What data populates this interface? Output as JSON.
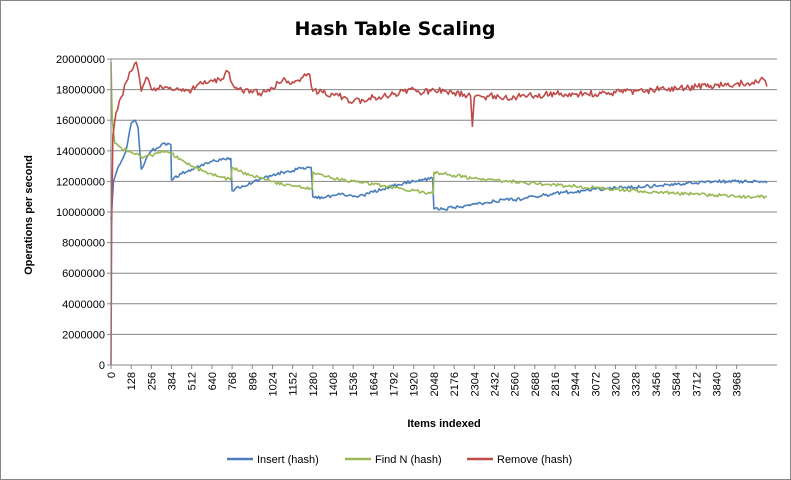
{
  "chart_data": {
    "type": "line",
    "title": "Hash Table Scaling",
    "xlabel": "Items indexed",
    "ylabel": "Operations per second",
    "xlim": [
      0,
      4224
    ],
    "ylim": [
      0,
      20000000
    ],
    "y_ticks": [
      "0",
      "2000000",
      "4000000",
      "6000000",
      "8000000",
      "10000000",
      "12000000",
      "14000000",
      "16000000",
      "18000000",
      "20000000"
    ],
    "x_ticks": [
      "0",
      "128",
      "256",
      "384",
      "512",
      "640",
      "768",
      "896",
      "1024",
      "1152",
      "1280",
      "1408",
      "1536",
      "1664",
      "1792",
      "1920",
      "2048",
      "2176",
      "2304",
      "2432",
      "2560",
      "2688",
      "2816",
      "2944",
      "3072",
      "3200",
      "3328",
      "3456",
      "3584",
      "3712",
      "3840",
      "3968"
    ],
    "grid": "horizontal",
    "legend_position": "bottom",
    "series": [
      {
        "name": "Insert (hash)",
        "color": "#4a7ebb",
        "points": [
          [
            0,
            9500000
          ],
          [
            16,
            12000000
          ],
          [
            48,
            13000000
          ],
          [
            96,
            14000000
          ],
          [
            128,
            15800000
          ],
          [
            152,
            16000000
          ],
          [
            172,
            15500000
          ],
          [
            192,
            12800000
          ],
          [
            224,
            13500000
          ],
          [
            256,
            14000000
          ],
          [
            300,
            14200000
          ],
          [
            340,
            14500000
          ],
          [
            380,
            14400000
          ],
          [
            384,
            12100000
          ],
          [
            448,
            12500000
          ],
          [
            512,
            12800000
          ],
          [
            576,
            13100000
          ],
          [
            640,
            13300000
          ],
          [
            700,
            13400000
          ],
          [
            760,
            13500000
          ],
          [
            768,
            11400000
          ],
          [
            832,
            11700000
          ],
          [
            896,
            11900000
          ],
          [
            960,
            12200000
          ],
          [
            1024,
            12400000
          ],
          [
            1088,
            12600000
          ],
          [
            1152,
            12700000
          ],
          [
            1216,
            12900000
          ],
          [
            1270,
            12900000
          ],
          [
            1280,
            11000000
          ],
          [
            1344,
            10900000
          ],
          [
            1408,
            11100000
          ],
          [
            1472,
            11200000
          ],
          [
            1536,
            11000000
          ],
          [
            1600,
            11100000
          ],
          [
            1664,
            11300000
          ],
          [
            1728,
            11500000
          ],
          [
            1792,
            11700000
          ],
          [
            1856,
            11900000
          ],
          [
            1920,
            12000000
          ],
          [
            1984,
            12100000
          ],
          [
            2040,
            12200000
          ],
          [
            2048,
            10200000
          ],
          [
            2112,
            10200000
          ],
          [
            2176,
            10300000
          ],
          [
            2240,
            10400000
          ],
          [
            2304,
            10500000
          ],
          [
            2368,
            10600000
          ],
          [
            2432,
            10700000
          ],
          [
            2496,
            10800000
          ],
          [
            2560,
            10800000
          ],
          [
            2624,
            10900000
          ],
          [
            2688,
            11000000
          ],
          [
            2752,
            11100000
          ],
          [
            2816,
            11200000
          ],
          [
            2880,
            11300000
          ],
          [
            2944,
            11300000
          ],
          [
            3008,
            11400000
          ],
          [
            3072,
            11500000
          ],
          [
            3136,
            11500000
          ],
          [
            3200,
            11600000
          ],
          [
            3264,
            11600000
          ],
          [
            3328,
            11600000
          ],
          [
            3392,
            11700000
          ],
          [
            3456,
            11700000
          ],
          [
            3520,
            11800000
          ],
          [
            3584,
            11800000
          ],
          [
            3648,
            11900000
          ],
          [
            3712,
            11900000
          ],
          [
            3776,
            12000000
          ],
          [
            3840,
            12000000
          ],
          [
            3904,
            12000000
          ],
          [
            3968,
            12000000
          ],
          [
            4032,
            12000000
          ],
          [
            4096,
            12000000
          ],
          [
            4160,
            11900000
          ]
        ]
      },
      {
        "name": "Find N (hash)",
        "color": "#98b954",
        "points": [
          [
            0,
            19800000
          ],
          [
            8,
            16000000
          ],
          [
            24,
            14500000
          ],
          [
            64,
            14200000
          ],
          [
            128,
            13900000
          ],
          [
            192,
            13600000
          ],
          [
            256,
            13700000
          ],
          [
            320,
            14000000
          ],
          [
            384,
            13800000
          ],
          [
            448,
            13400000
          ],
          [
            512,
            13000000
          ],
          [
            576,
            12700000
          ],
          [
            640,
            12500000
          ],
          [
            700,
            12300000
          ],
          [
            760,
            12100000
          ],
          [
            768,
            12900000
          ],
          [
            832,
            12600000
          ],
          [
            896,
            12400000
          ],
          [
            960,
            12200000
          ],
          [
            1024,
            12000000
          ],
          [
            1088,
            11800000
          ],
          [
            1152,
            11700000
          ],
          [
            1216,
            11600000
          ],
          [
            1276,
            11500000
          ],
          [
            1280,
            12600000
          ],
          [
            1344,
            12400000
          ],
          [
            1408,
            12200000
          ],
          [
            1472,
            12100000
          ],
          [
            1536,
            12000000
          ],
          [
            1600,
            11900000
          ],
          [
            1664,
            11800000
          ],
          [
            1728,
            11700000
          ],
          [
            1792,
            11600000
          ],
          [
            1856,
            11500000
          ],
          [
            1920,
            11400000
          ],
          [
            1984,
            11300000
          ],
          [
            2044,
            11200000
          ],
          [
            2048,
            12600000
          ],
          [
            2112,
            12500000
          ],
          [
            2176,
            12400000
          ],
          [
            2240,
            12300000
          ],
          [
            2304,
            12200000
          ],
          [
            2368,
            12100000
          ],
          [
            2432,
            12100000
          ],
          [
            2496,
            12000000
          ],
          [
            2560,
            12000000
          ],
          [
            2624,
            11900000
          ],
          [
            2688,
            11900000
          ],
          [
            2752,
            11800000
          ],
          [
            2816,
            11800000
          ],
          [
            2880,
            11700000
          ],
          [
            2944,
            11700000
          ],
          [
            3008,
            11600000
          ],
          [
            3072,
            11600000
          ],
          [
            3136,
            11500000
          ],
          [
            3200,
            11500000
          ],
          [
            3264,
            11400000
          ],
          [
            3328,
            11400000
          ],
          [
            3392,
            11300000
          ],
          [
            3456,
            11300000
          ],
          [
            3520,
            11300000
          ],
          [
            3584,
            11200000
          ],
          [
            3648,
            11200000
          ],
          [
            3712,
            11200000
          ],
          [
            3776,
            11100000
          ],
          [
            3840,
            11100000
          ],
          [
            3904,
            11100000
          ],
          [
            3968,
            11000000
          ],
          [
            4032,
            11000000
          ],
          [
            4096,
            11000000
          ],
          [
            4160,
            11000000
          ]
        ]
      },
      {
        "name": "Remove (hash)",
        "color": "#be4b48",
        "points": [
          [
            0,
            0
          ],
          [
            4,
            9000000
          ],
          [
            12,
            15000000
          ],
          [
            32,
            16500000
          ],
          [
            64,
            17500000
          ],
          [
            96,
            18500000
          ],
          [
            128,
            19200000
          ],
          [
            160,
            19800000
          ],
          [
            192,
            17900000
          ],
          [
            224,
            18800000
          ],
          [
            256,
            18000000
          ],
          [
            320,
            18200000
          ],
          [
            384,
            18000000
          ],
          [
            448,
            17900000
          ],
          [
            512,
            18000000
          ],
          [
            576,
            18400000
          ],
          [
            640,
            18600000
          ],
          [
            704,
            18700000
          ],
          [
            740,
            19200000
          ],
          [
            768,
            18400000
          ],
          [
            832,
            17900000
          ],
          [
            896,
            17800000
          ],
          [
            960,
            17800000
          ],
          [
            1024,
            18100000
          ],
          [
            1088,
            18600000
          ],
          [
            1152,
            18500000
          ],
          [
            1216,
            18800000
          ],
          [
            1260,
            19000000
          ],
          [
            1280,
            17900000
          ],
          [
            1344,
            17800000
          ],
          [
            1408,
            17700000
          ],
          [
            1472,
            17500000
          ],
          [
            1536,
            17200000
          ],
          [
            1600,
            17300000
          ],
          [
            1664,
            17500000
          ],
          [
            1728,
            17600000
          ],
          [
            1792,
            17700000
          ],
          [
            1856,
            17900000
          ],
          [
            1920,
            18000000
          ],
          [
            1984,
            17800000
          ],
          [
            2048,
            18000000
          ],
          [
            2112,
            17900000
          ],
          [
            2176,
            17800000
          ],
          [
            2240,
            17700000
          ],
          [
            2280,
            17600000
          ],
          [
            2292,
            15600000
          ],
          [
            2304,
            17500000
          ],
          [
            2368,
            17500000
          ],
          [
            2432,
            17600000
          ],
          [
            2496,
            17500000
          ],
          [
            2560,
            17500000
          ],
          [
            2624,
            17600000
          ],
          [
            2688,
            17600000
          ],
          [
            2752,
            17700000
          ],
          [
            2816,
            17700000
          ],
          [
            2880,
            17700000
          ],
          [
            2944,
            17700000
          ],
          [
            3008,
            17800000
          ],
          [
            3072,
            17700000
          ],
          [
            3136,
            17800000
          ],
          [
            3200,
            17800000
          ],
          [
            3264,
            17900000
          ],
          [
            3328,
            17900000
          ],
          [
            3392,
            17900000
          ],
          [
            3456,
            18000000
          ],
          [
            3520,
            18000000
          ],
          [
            3584,
            18100000
          ],
          [
            3648,
            18100000
          ],
          [
            3712,
            18200000
          ],
          [
            3776,
            18200000
          ],
          [
            3840,
            18300000
          ],
          [
            3904,
            18300000
          ],
          [
            3968,
            18400000
          ],
          [
            4032,
            18400000
          ],
          [
            4096,
            18500000
          ],
          [
            4128,
            18800000
          ],
          [
            4160,
            18200000
          ]
        ]
      }
    ]
  }
}
